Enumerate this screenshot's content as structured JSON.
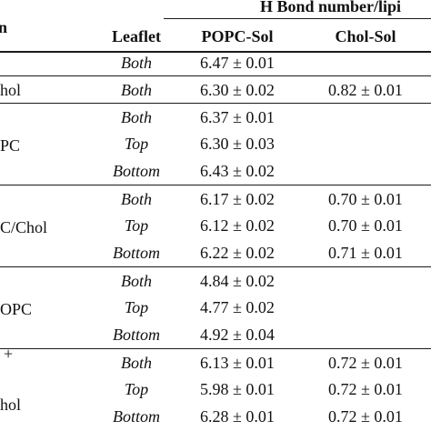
{
  "table": {
    "header_group": "H Bond number/lipi",
    "header_left": "n",
    "col_leaflet": "Leaflet",
    "col_popc_sol": "POPC-Sol",
    "col_chol_sol": "Chol-Sol",
    "systems": [
      {
        "label": "",
        "rows": [
          {
            "leaflet": "Both",
            "popc": "6.47 ± 0.01",
            "chol": ""
          }
        ]
      },
      {
        "label": "hol",
        "rows": [
          {
            "leaflet": "Both",
            "popc": "6.30 ± 0.02",
            "chol": "0.82 ± 0.01"
          }
        ]
      },
      {
        "label": "PC",
        "rows": [
          {
            "leaflet": "Both",
            "popc": "6.37 ± 0.01",
            "chol": ""
          },
          {
            "leaflet": "Top",
            "popc": "6.30 ± 0.03",
            "chol": ""
          },
          {
            "leaflet": "Bottom",
            "popc": "6.43 ± 0.02",
            "chol": ""
          }
        ]
      },
      {
        "label": "C/Chol",
        "rows": [
          {
            "leaflet": "Both",
            "popc": "6.17 ± 0.02",
            "chol": "0.70 ± 0.01"
          },
          {
            "leaflet": "Top",
            "popc": "6.12 ± 0.02",
            "chol": "0.70 ± 0.01"
          },
          {
            "leaflet": "Bottom",
            "popc": "6.22 ± 0.02",
            "chol": "0.71 ± 0.01"
          }
        ]
      },
      {
        "label": "OPC",
        "rows": [
          {
            "leaflet": "Both",
            "popc": "4.84 ± 0.02",
            "chol": ""
          },
          {
            "leaflet": "Top",
            "popc": "4.77 ± 0.02",
            "chol": ""
          },
          {
            "leaflet": "Bottom",
            "popc": "4.92 ± 0.04",
            "chol": ""
          }
        ]
      },
      {
        "label_line1": "+",
        "label_line2": "hol",
        "rows": [
          {
            "leaflet": "Both",
            "popc": "6.13 ± 0.01",
            "chol": "0.72 ± 0.01"
          },
          {
            "leaflet": "Top",
            "popc": "5.98 ± 0.01",
            "chol": "0.72 ± 0.01"
          },
          {
            "leaflet": "Bottom",
            "popc": "6.28 ± 0.01",
            "chol": "0.72 ± 0.01"
          }
        ]
      }
    ]
  }
}
